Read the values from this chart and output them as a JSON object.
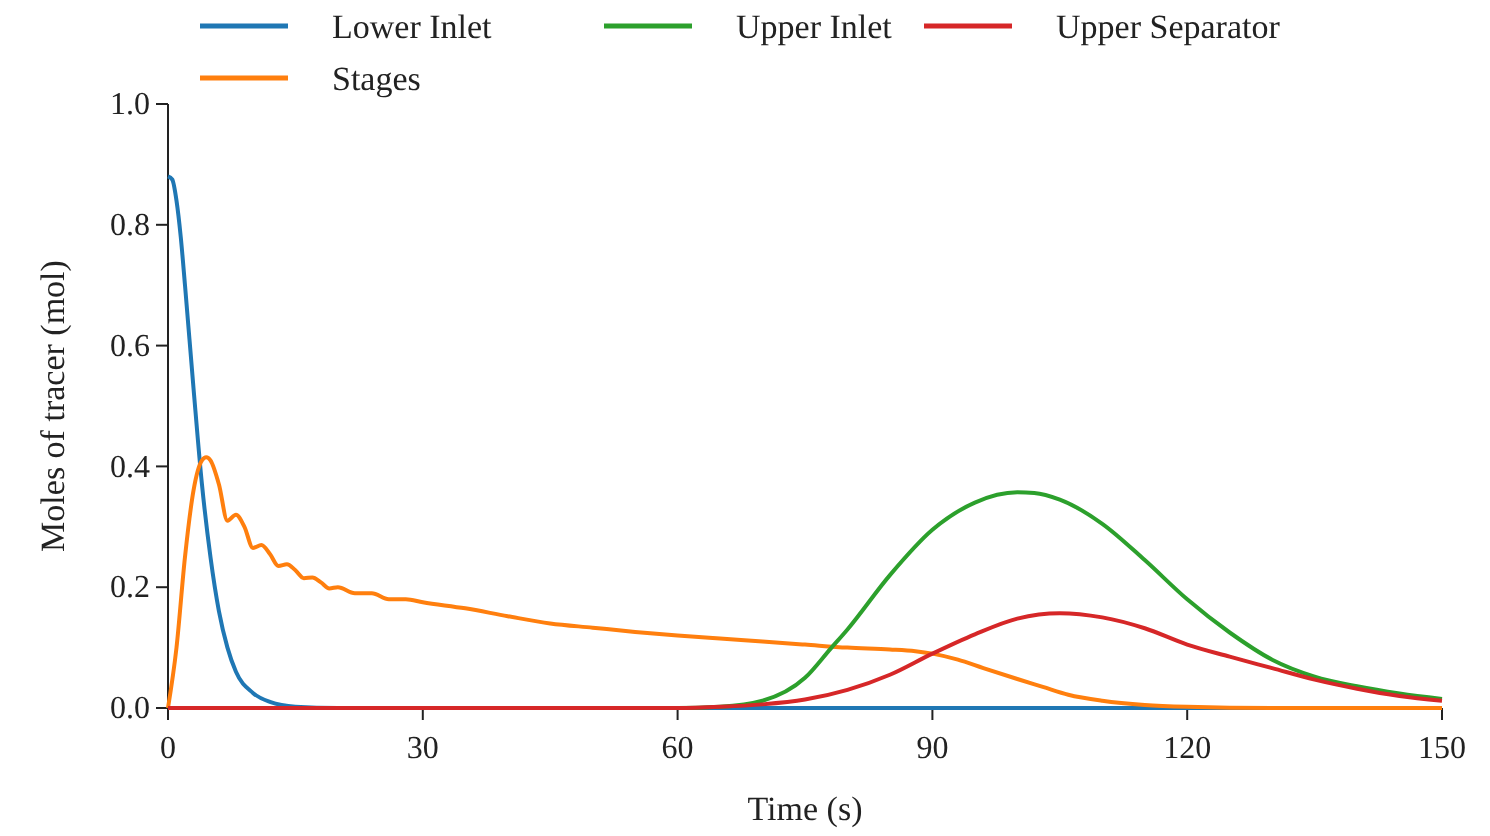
{
  "chart_data": {
    "type": "line",
    "xlabel": "Time (s)",
    "ylabel": "Moles of tracer (mol)",
    "xlim": [
      0,
      150
    ],
    "ylim": [
      0,
      1
    ],
    "xticks": [
      0,
      30,
      60,
      90,
      120,
      150
    ],
    "yticks": [
      {
        "value": 0,
        "label": "0.0"
      },
      {
        "value": 0.2,
        "label": "0.2"
      },
      {
        "value": 0.4,
        "label": "0.4"
      },
      {
        "value": 0.6,
        "label": "0.6"
      },
      {
        "value": 0.8,
        "label": "0.8"
      },
      {
        "value": 1,
        "label": "1.0"
      }
    ],
    "legend": "top",
    "grid": false,
    "marker": "none",
    "line_style": "solid",
    "series": [
      {
        "name": "Lower Inlet",
        "color": "#1f77b4",
        "x": [
          0,
          0.5,
          1,
          1.5,
          2,
          3,
          4,
          5,
          6,
          7,
          8,
          10,
          12,
          15,
          20,
          150
        ],
        "values": [
          0.88,
          0.875,
          0.84,
          0.78,
          0.7,
          0.53,
          0.37,
          0.25,
          0.16,
          0.1,
          0.06,
          0.025,
          0.01,
          0.002,
          0,
          0
        ]
      },
      {
        "name": "Stages",
        "color": "#ff7f0e",
        "x": [
          0,
          1,
          2,
          3,
          4,
          4.5,
          5,
          6,
          7,
          8,
          9,
          10,
          11,
          12,
          13,
          14,
          15,
          16,
          17,
          18,
          19,
          20,
          22,
          24,
          26,
          28,
          30,
          35,
          40,
          45,
          50,
          55,
          60,
          65,
          70,
          75,
          80,
          85,
          88,
          90,
          93,
          96,
          100,
          103,
          106,
          110,
          115,
          120,
          130,
          150
        ],
        "values": [
          0,
          0.1,
          0.25,
          0.36,
          0.41,
          0.415,
          0.41,
          0.37,
          0.31,
          0.32,
          0.3,
          0.265,
          0.27,
          0.255,
          0.235,
          0.238,
          0.228,
          0.215,
          0.216,
          0.208,
          0.198,
          0.2,
          0.19,
          0.19,
          0.18,
          0.18,
          0.175,
          0.165,
          0.152,
          0.14,
          0.133,
          0.126,
          0.12,
          0.115,
          0.11,
          0.105,
          0.1,
          0.097,
          0.094,
          0.09,
          0.08,
          0.066,
          0.048,
          0.035,
          0.022,
          0.012,
          0.005,
          0.002,
          0,
          0
        ]
      },
      {
        "name": "Upper Inlet",
        "color": "#2ca02c",
        "x": [
          0,
          60,
          65,
          70,
          75,
          78,
          80,
          85,
          90,
          95,
          100,
          102,
          105,
          110,
          115,
          120,
          125,
          130,
          135,
          140,
          145,
          150
        ],
        "values": [
          0,
          0,
          0.002,
          0.012,
          0.05,
          0.098,
          0.13,
          0.22,
          0.295,
          0.34,
          0.357,
          0.356,
          0.345,
          0.305,
          0.245,
          0.18,
          0.125,
          0.08,
          0.052,
          0.036,
          0.024,
          0.015
        ]
      },
      {
        "name": "Upper Separator",
        "color": "#d62728",
        "x": [
          0,
          60,
          65,
          70,
          75,
          80,
          85,
          90,
          95,
          100,
          105,
          110,
          115,
          120,
          125,
          130,
          135,
          140,
          145,
          150
        ],
        "values": [
          0,
          0,
          0.002,
          0.006,
          0.014,
          0.03,
          0.055,
          0.09,
          0.122,
          0.148,
          0.157,
          0.15,
          0.132,
          0.105,
          0.085,
          0.066,
          0.047,
          0.032,
          0.02,
          0.012
        ]
      }
    ]
  }
}
